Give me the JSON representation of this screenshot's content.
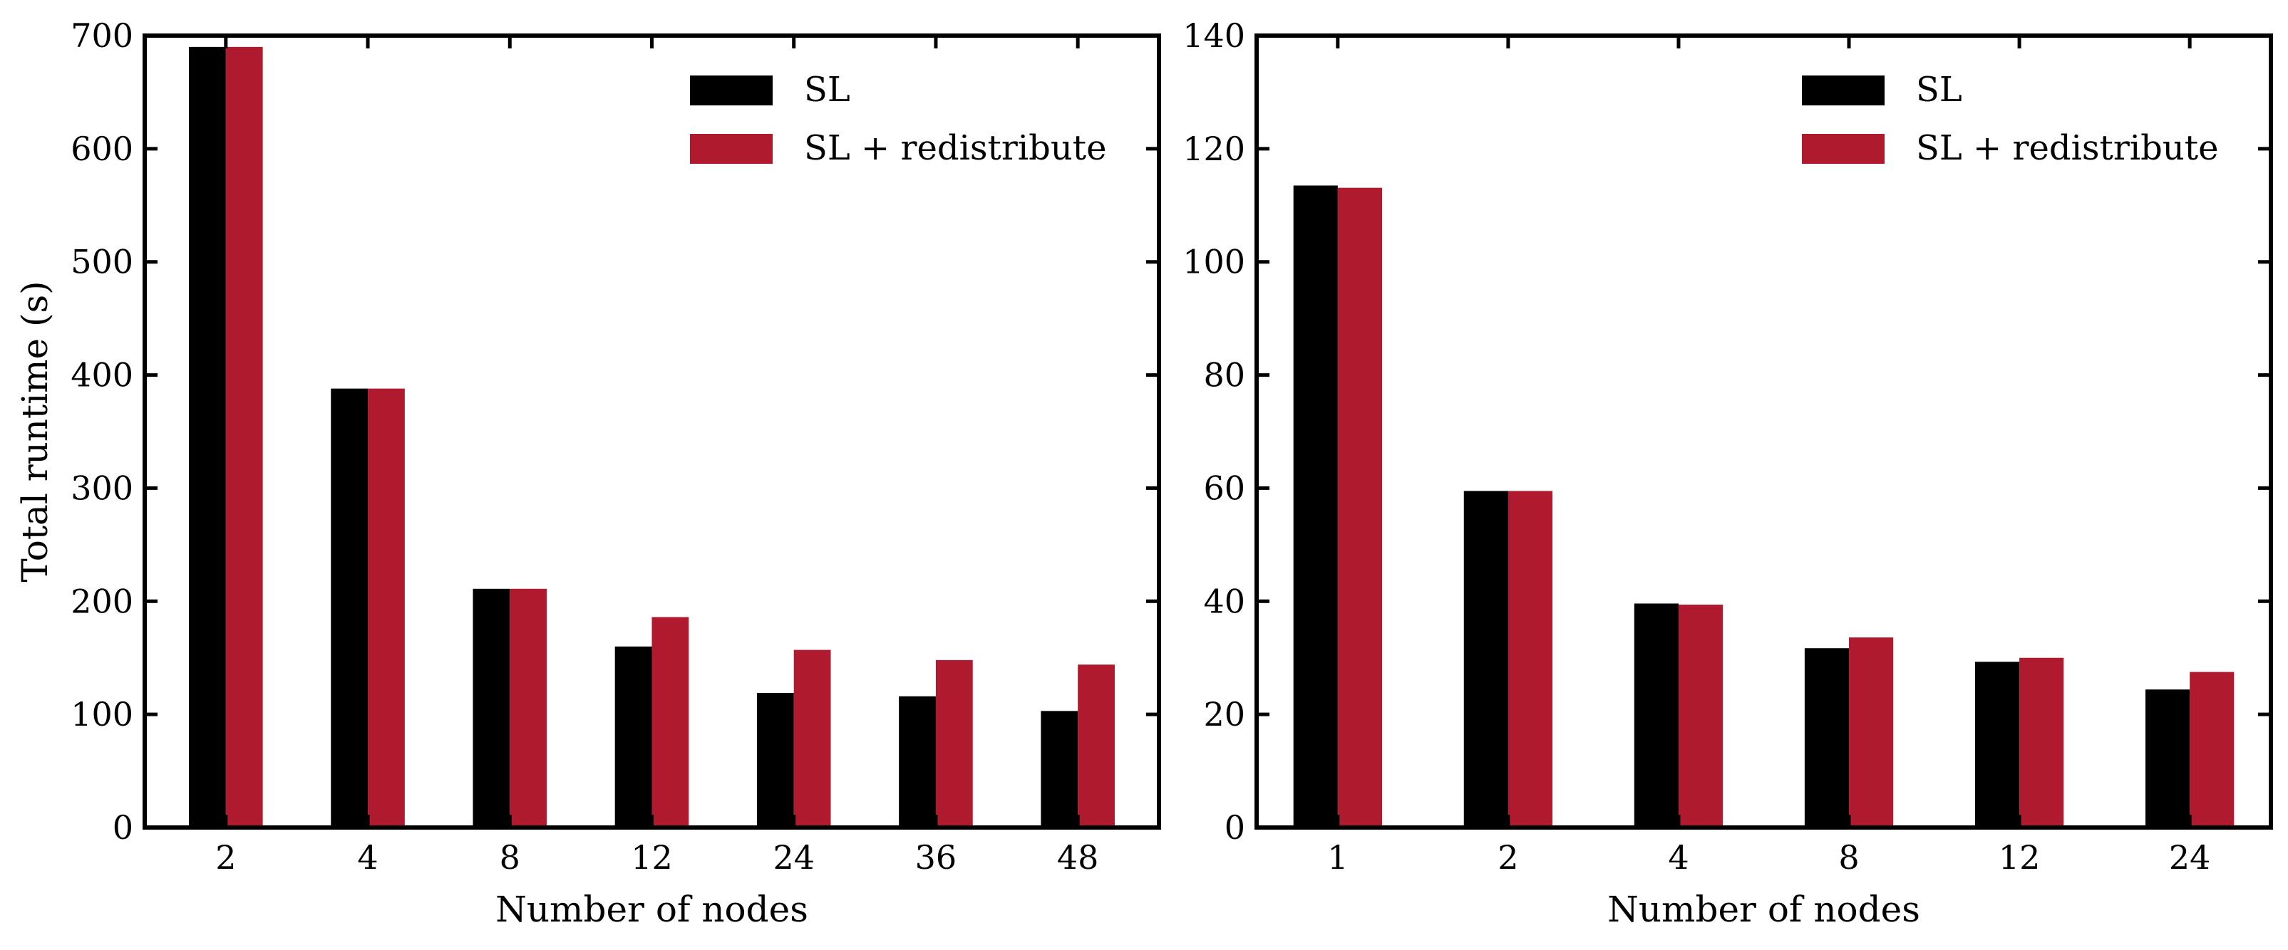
{
  "colors": {
    "sl": "#000000",
    "sl_redistribute": "#b01a2e",
    "frame": "#000000",
    "background": "#ffffff"
  },
  "chart_data": [
    {
      "type": "bar",
      "xlabel": "Number of nodes",
      "ylabel": "Total runtime (s)",
      "ylim": [
        0,
        700
      ],
      "yticks": [
        0,
        100,
        200,
        300,
        400,
        500,
        600,
        700
      ],
      "grid": false,
      "legend_position": "top-right",
      "categories": [
        "2",
        "4",
        "8",
        "12",
        "24",
        "36",
        "48"
      ],
      "series": [
        {
          "name": "SL",
          "values": [
            690,
            388,
            211,
            160,
            119,
            116,
            103
          ]
        },
        {
          "name": "SL + redistribute",
          "values": [
            690,
            388,
            211,
            186,
            157,
            148,
            144
          ]
        }
      ]
    },
    {
      "type": "bar",
      "xlabel": "Number of nodes",
      "ylabel": "",
      "ylim": [
        0,
        140
      ],
      "yticks": [
        0,
        20,
        40,
        60,
        80,
        100,
        120,
        140
      ],
      "grid": false,
      "legend_position": "top-right",
      "categories": [
        "1",
        "2",
        "4",
        "8",
        "12",
        "24"
      ],
      "series": [
        {
          "name": "SL",
          "values": [
            113.5,
            59.5,
            39.6,
            31.7,
            29.3,
            24.4
          ]
        },
        {
          "name": "SL + redistribute",
          "values": [
            113.1,
            59.5,
            39.4,
            33.6,
            30.0,
            27.5
          ]
        }
      ]
    }
  ]
}
